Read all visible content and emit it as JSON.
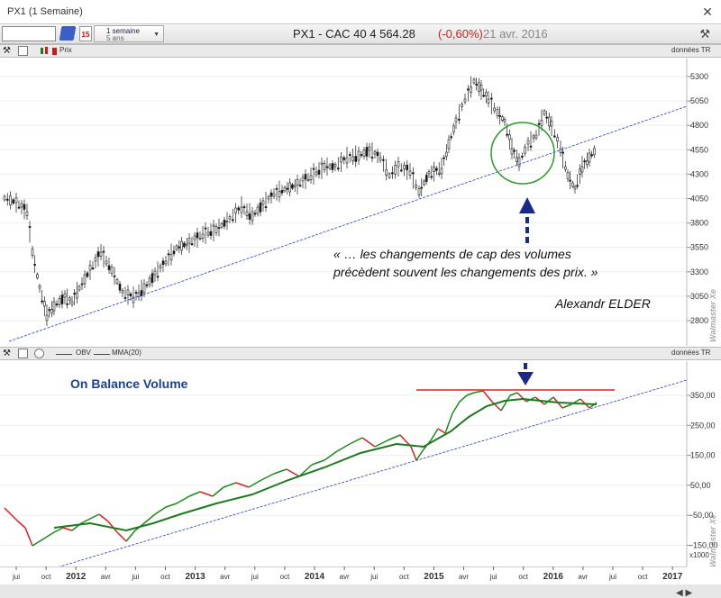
{
  "window": {
    "title": "PX1 (1 Semaine)",
    "close_label": "✕"
  },
  "toolbar": {
    "period_line1": "1 semaine",
    "period_line2": "5 ans",
    "calendar_label": "15",
    "symbol_text": "PX1 - CAC 40  4 564.28",
    "change_text": "(-0,60%)",
    "date_text": "21 avr. 2016",
    "tool_icon": "wrench-hammer-icon"
  },
  "price_panel": {
    "legend_label": "Prix",
    "right_label": "données TR",
    "watermark": "Walmaster Xe",
    "y_ticks": [
      "5300",
      "5050",
      "4800",
      "4550",
      "4300",
      "4050",
      "3800",
      "3550",
      "3300",
      "3050",
      "2800"
    ],
    "quote_line1": "« … les changements de cap des volumes",
    "quote_line2": "précèdent souvent les changements des prix. »",
    "quote_author": "Alexandr ELDER"
  },
  "obv_panel": {
    "legend_obv": "OBV",
    "legend_mma": "MMA(20)",
    "right_label": "données TR",
    "title": "On Balance Volume",
    "watermark": "Walmaster Xe",
    "unit_label": "x1000",
    "y_ticks": [
      "350,00",
      "250,00",
      "150,00",
      "50,00",
      "-50,00",
      "-150,00"
    ]
  },
  "x_axis": {
    "labels": [
      "jui",
      "oct",
      "2012",
      "avr",
      "jui",
      "oct",
      "2013",
      "avr",
      "jui",
      "oct",
      "2014",
      "avr",
      "jui",
      "oct",
      "2015",
      "avr",
      "jui",
      "oct",
      "2016",
      "avr",
      "jui",
      "oct",
      "2017"
    ]
  },
  "colors": {
    "candle_up": "#1a1a1a",
    "candle_down": "#1a1a1a",
    "trendline": "#2a3cc8",
    "obv_rising": "#1a8a1a",
    "obv_falling": "#e02020",
    "mma": "#1e7a1e",
    "resistance": "#e02020",
    "circle": "#2a9a2a",
    "arrow": "#1a2a8a",
    "title_blue": "#1f3f8f"
  }
}
